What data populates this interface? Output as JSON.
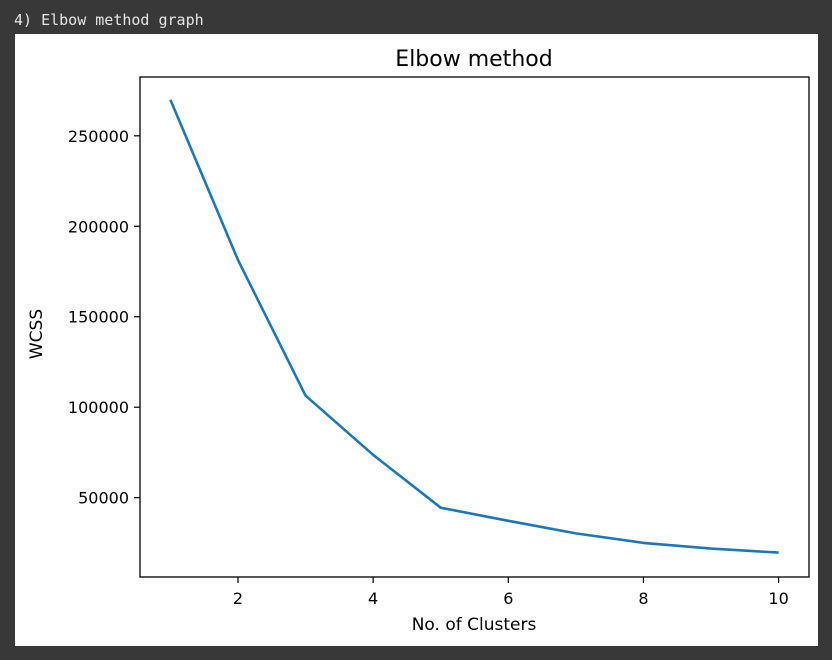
{
  "caption": "4) Elbow method graph",
  "chart_data": {
    "type": "line",
    "title": "Elbow method",
    "xlabel": "No. of Clusters",
    "ylabel": "WCSS",
    "x": [
      1,
      2,
      3,
      4,
      5,
      6,
      7,
      8,
      9,
      10
    ],
    "series": [
      {
        "values": [
          269981,
          181363,
          106348,
          73679,
          44448,
          37233,
          30259,
          25012,
          21850,
          19636
        ],
        "color": "#1f77b4"
      }
    ],
    "xlim": [
      0.55,
      10.45
    ],
    "ylim": [
      6150,
      282500
    ],
    "xticks": [
      2,
      4,
      6,
      8,
      10
    ],
    "yticks": [
      50000,
      100000,
      150000,
      200000,
      250000
    ],
    "grid": false
  }
}
